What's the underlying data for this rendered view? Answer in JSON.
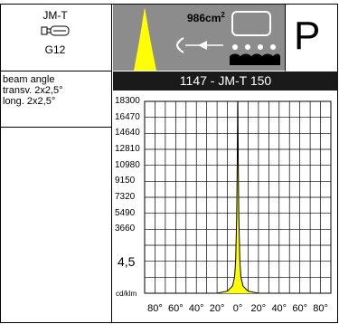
{
  "lamp": {
    "code": "JM-T",
    "socket": "G12",
    "icon": "lamp-bulb-icon"
  },
  "beam": {
    "label": "beam angle",
    "transverse": "transv. 2x2,5°",
    "longitudinal": "long. 2x2,5°"
  },
  "header": {
    "area_value": "986cm",
    "area_sup": "2",
    "big_letter": "P",
    "title": "1147 - JM-T 150"
  },
  "chart_data": {
    "type": "line",
    "unit": "cd/klm",
    "y_ticks": [
      "18300",
      "16470",
      "14640",
      "12810",
      "10980",
      "9150",
      "7320",
      "5490",
      "3660"
    ],
    "y_min_label": "4,5",
    "x_ticks": [
      "80°",
      "60°",
      "40°",
      "20°",
      "0°",
      "20°",
      "40°",
      "60°",
      "80°"
    ],
    "xlim": [
      -90,
      90
    ],
    "ylim": [
      0,
      18300
    ],
    "series": [
      {
        "color": "#ffff00",
        "x": [
          -90,
          -20,
          -10,
          -5,
          -3,
          -2,
          -1,
          -0.5,
          0,
          0.5,
          1,
          2,
          3,
          5,
          10,
          20,
          90
        ],
        "y": [
          0,
          0,
          200,
          700,
          1600,
          3200,
          7500,
          12500,
          18300,
          12500,
          7500,
          3200,
          1600,
          700,
          200,
          0,
          0
        ]
      }
    ]
  }
}
